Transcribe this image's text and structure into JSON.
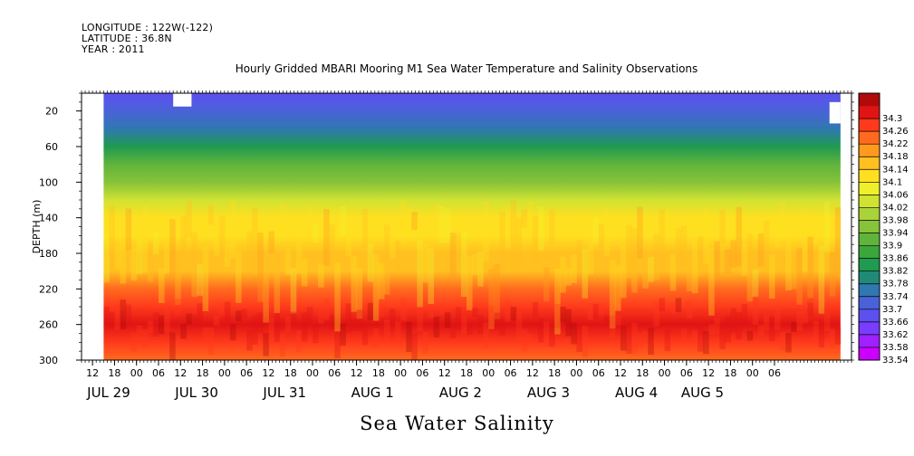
{
  "header": {
    "longitude": "LONGITUDE : 122W(-122)",
    "latitude": "LATITUDE : 36.8N",
    "year": "YEAR : 2011"
  },
  "chart_data": {
    "type": "heatmap",
    "title": "Hourly Gridded MBARI Mooring M1 Sea Water Temperature and Salinity Observations",
    "xlabel": "Sea Water Salinity",
    "ylabel": "DEPTH (m)",
    "x_range_hours": [
      0,
      210
    ],
    "x_hour_ticks": [
      "12",
      "18",
      "00",
      "06",
      "12",
      "18",
      "00",
      "06",
      "12",
      "18",
      "00",
      "06",
      "12",
      "18",
      "00",
      "06",
      "12",
      "18",
      "00",
      "06",
      "12",
      "18",
      "00",
      "06",
      "12",
      "18",
      "00",
      "06",
      "12",
      "18",
      "00",
      "06"
    ],
    "x_day_labels": [
      {
        "text": "JUL 29",
        "hour": 3
      },
      {
        "text": "JUL 30",
        "hour": 27
      },
      {
        "text": "JUL 31",
        "hour": 51
      },
      {
        "text": "AUG 1",
        "hour": 75
      },
      {
        "text": "AUG 2",
        "hour": 99
      },
      {
        "text": "AUG 3",
        "hour": 123
      },
      {
        "text": "AUG 4",
        "hour": 147
      },
      {
        "text": "AUG 5",
        "hour": 165
      }
    ],
    "y_ticks": [
      20,
      60,
      100,
      140,
      180,
      220,
      260,
      300
    ],
    "ylim": [
      300,
      0
    ],
    "data_start_hour": 6,
    "data_end_hour": 207,
    "depth_profile": [
      {
        "depth": 0,
        "salinity": 33.64
      },
      {
        "depth": 20,
        "salinity": 33.67
      },
      {
        "depth": 40,
        "salinity": 33.72
      },
      {
        "depth": 60,
        "salinity": 33.8
      },
      {
        "depth": 80,
        "salinity": 33.86
      },
      {
        "depth": 100,
        "salinity": 33.92
      },
      {
        "depth": 120,
        "salinity": 34.0
      },
      {
        "depth": 140,
        "salinity": 34.07
      },
      {
        "depth": 160,
        "salinity": 34.09
      },
      {
        "depth": 180,
        "salinity": 34.1
      },
      {
        "depth": 200,
        "salinity": 34.13
      },
      {
        "depth": 220,
        "salinity": 34.18
      },
      {
        "depth": 240,
        "salinity": 34.25
      },
      {
        "depth": 260,
        "salinity": 34.26
      },
      {
        "depth": 280,
        "salinity": 34.22
      },
      {
        "depth": 300,
        "salinity": 34.2
      }
    ],
    "colorbar": {
      "levels": [
        33.54,
        33.58,
        33.62,
        33.66,
        33.7,
        33.74,
        33.78,
        33.82,
        33.86,
        33.9,
        33.94,
        33.98,
        34.02,
        34.06,
        34.1,
        34.14,
        34.18,
        34.22,
        34.26,
        34.3
      ],
      "labels": [
        "33.54",
        "33.58",
        "33.62",
        "33.66",
        "33.7",
        "33.74",
        "33.78",
        "33.82",
        "33.86",
        "33.9",
        "33.94",
        "33.98",
        "34.02",
        "34.06",
        "34.1",
        "34.14",
        "34.18",
        "34.22",
        "34.26",
        "34.3"
      ],
      "colors": [
        "#cc00ff",
        "#a020ff",
        "#7a3cff",
        "#5c50f0",
        "#4a62d8",
        "#2f78b0",
        "#1f8a78",
        "#1f9a50",
        "#3aa63c",
        "#60b43c",
        "#86c23a",
        "#aad23a",
        "#d0e232",
        "#f0f02a",
        "#ffe020",
        "#ffc020",
        "#ff9a1e",
        "#ff6a1e",
        "#ff3a1c",
        "#e01414",
        "#b00a0a"
      ]
    },
    "missing_blocks": [
      {
        "hour_start": 0,
        "hour_end": 6,
        "depth_top": 0,
        "depth_bottom": 300
      },
      {
        "hour_start": 25,
        "hour_end": 30,
        "depth_top": 0,
        "depth_bottom": 15
      },
      {
        "hour_start": 204,
        "hour_end": 207,
        "depth_top": 10,
        "depth_bottom": 34
      }
    ]
  }
}
